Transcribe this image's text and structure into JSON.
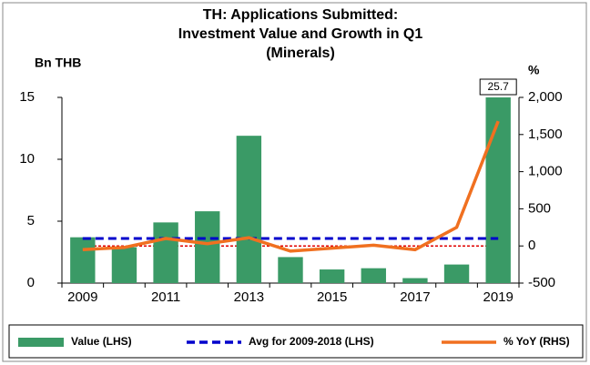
{
  "chart_data": {
    "type": "bar",
    "title": [
      "TH: Applications Submitted:",
      "Investment Value and Growth in Q1",
      "(Minerals)"
    ],
    "y_label": "Bn THB",
    "y2_label": "%",
    "categories": [
      "2009",
      null,
      "2011",
      null,
      "2013",
      null,
      "2015",
      null,
      "2017",
      null,
      "2019"
    ],
    "series": [
      {
        "name": "Value (LHS)",
        "type": "bar",
        "color": "#3a9a66",
        "values": [
          3.7,
          2.9,
          4.9,
          5.8,
          11.9,
          2.1,
          1.1,
          1.2,
          0.4,
          1.5,
          25.7
        ],
        "value_labels": [
          null,
          null,
          null,
          null,
          null,
          null,
          null,
          null,
          null,
          null,
          "25.7"
        ]
      },
      {
        "name": "Avg for 2009-2018 (LHS)",
        "type": "line",
        "dashed": true,
        "color": "#0000cc",
        "values": [
          3.6,
          3.6,
          3.6,
          3.6,
          3.6,
          3.6,
          3.6,
          3.6,
          3.6,
          3.6,
          3.6
        ]
      },
      {
        "name": "% YoY (RHS)",
        "type": "line",
        "axis": "y2",
        "color": "#f07020",
        "values": [
          -50,
          -20,
          100,
          30,
          110,
          -70,
          -30,
          10,
          -50,
          250,
          1680
        ]
      }
    ],
    "reference_lines": [
      {
        "axis": "y2",
        "value": 0,
        "color": "#e00000"
      }
    ],
    "ylim": [
      0,
      15
    ],
    "yticks": [
      0,
      5,
      10,
      15
    ],
    "y2lim": [
      -500,
      2000
    ],
    "y2ticks": [
      -500,
      0,
      500,
      {
        "value": 1000,
        "label": "1,000"
      },
      {
        "value": 1500,
        "label": "1,500"
      },
      {
        "value": 2000,
        "label": "2,000"
      }
    ],
    "legend": "bottom"
  }
}
